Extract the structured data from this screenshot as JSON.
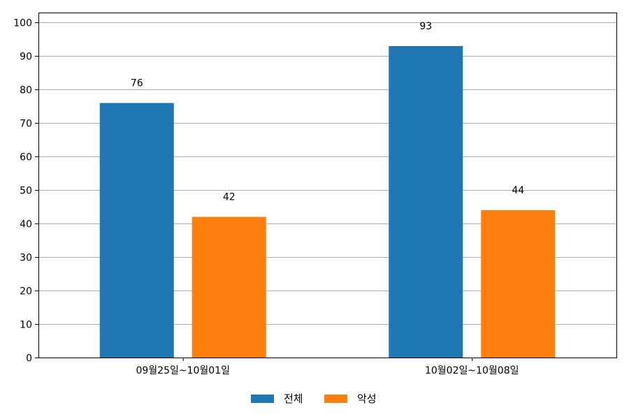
{
  "chart_data": {
    "type": "bar",
    "categories": [
      "09월25일~10월01일",
      "10월02일~10월08일"
    ],
    "series": [
      {
        "name": "전체",
        "color": "#1f77b4",
        "values": [
          76,
          93
        ]
      },
      {
        "name": "악성",
        "color": "#ff7f0e",
        "values": [
          42,
          44
        ]
      }
    ],
    "ylim": [
      0,
      103
    ],
    "yticks": [
      0,
      10,
      20,
      30,
      40,
      50,
      60,
      70,
      80,
      90,
      100
    ],
    "grid": "horizontal",
    "legend": "bottom-center",
    "data_labels": true
  }
}
